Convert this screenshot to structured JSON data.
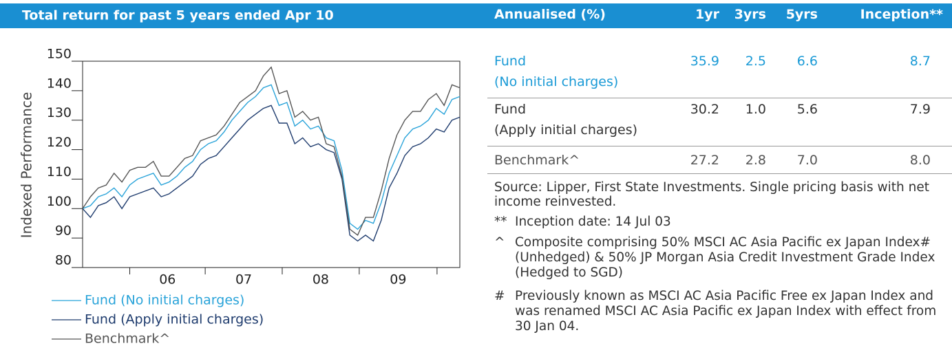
{
  "chart_data": {
    "type": "line",
    "title": "Total return for past 5 years ended Apr 10",
    "y_label": "Indexed Performance",
    "x": [
      0,
      1,
      2,
      3,
      4,
      5,
      6,
      7,
      8,
      9,
      10,
      11,
      12,
      13,
      14,
      15,
      16,
      17,
      18,
      19,
      20,
      21,
      22,
      23,
      24,
      25,
      26,
      27,
      28,
      29,
      30,
      31,
      32,
      33,
      34,
      35,
      36,
      37,
      38,
      39,
      40,
      41,
      42,
      43,
      44,
      45,
      46,
      47,
      48
    ],
    "xlim": [
      0,
      48
    ],
    "xticks": [
      6,
      15.6,
      25.4,
      35.2,
      45.1
    ],
    "year_labels": [
      "06",
      "07",
      "08",
      "09"
    ],
    "ylim": [
      80,
      150
    ],
    "yticks": [
      80,
      90,
      100,
      110,
      120,
      130,
      140,
      150
    ],
    "series": [
      {
        "name": "Fund (No initial charges)",
        "color": "#29a3d9",
        "values": [
          100,
          101,
          104,
          105,
          107,
          104,
          108,
          110,
          111,
          112,
          108,
          109,
          111,
          114,
          116,
          120,
          122,
          123,
          126,
          130,
          133,
          136,
          138,
          141,
          142,
          135,
          136,
          128,
          130,
          127,
          128,
          124,
          123,
          113,
          95,
          93,
          96,
          95,
          102,
          112,
          118,
          124,
          127,
          128,
          130,
          134,
          132,
          137,
          138
        ]
      },
      {
        "name": "Fund (Apply initial charges)",
        "color": "#1f3c6e",
        "values": [
          100,
          97,
          101,
          102,
          104,
          100,
          104,
          105,
          106,
          107,
          104,
          105,
          107,
          109,
          111,
          115,
          117,
          118,
          121,
          124,
          127,
          130,
          132,
          134,
          135,
          129,
          129,
          122,
          124,
          121,
          122,
          120,
          119,
          110,
          91,
          89,
          91,
          89,
          96,
          107,
          112,
          118,
          121,
          122,
          124,
          127,
          126,
          130,
          131
        ]
      },
      {
        "name": "Benchmark^",
        "color": "#555555",
        "values": [
          100,
          104,
          107,
          108,
          112,
          109,
          113,
          114,
          114,
          116,
          111,
          111,
          114,
          117,
          118,
          123,
          124,
          125,
          128,
          132,
          136,
          138,
          140,
          145,
          148,
          139,
          140,
          131,
          133,
          130,
          131,
          122,
          121,
          111,
          93,
          91,
          97,
          97,
          106,
          117,
          125,
          130,
          133,
          133,
          137,
          139,
          135,
          142,
          141
        ]
      }
    ]
  },
  "table": {
    "header": [
      "Annualised (%)",
      "1yr",
      "3yrs",
      "5yrs",
      "Inception**"
    ],
    "rows": [
      {
        "name": [
          "Fund",
          "(No initial charges)"
        ],
        "cells": [
          "35.9",
          "2.5",
          "6.6",
          "8.7"
        ]
      },
      {
        "name": [
          "Fund",
          "(Apply initial charges)"
        ],
        "cells": [
          "30.2",
          "1.0",
          "5.6",
          "7.9"
        ]
      },
      {
        "name": [
          "Benchmark^"
        ],
        "cells": [
          "27.2",
          "2.8",
          "7.0",
          "8.0"
        ]
      }
    ]
  },
  "notes": {
    "source": "Source: Lipper, First State Investments. Single pricing basis with net income reinvested.",
    "footnotes": [
      {
        "marker": "**",
        "text": "Inception date: 14 Jul 03"
      },
      {
        "marker": "^",
        "text": "Composite comprising 50% MSCI AC Asia Pacific ex Japan Index# (Unhedged) & 50% JP Morgan Asia Credit Investment Grade Index (Hedged to SGD)"
      },
      {
        "marker": "#",
        "text": "Previously known as MSCI AC Asia Pacific Free ex Japan Index and was renamed MSCI AC Asia Pacific ex Japan Index with effect from 30 Jan 04."
      }
    ]
  }
}
